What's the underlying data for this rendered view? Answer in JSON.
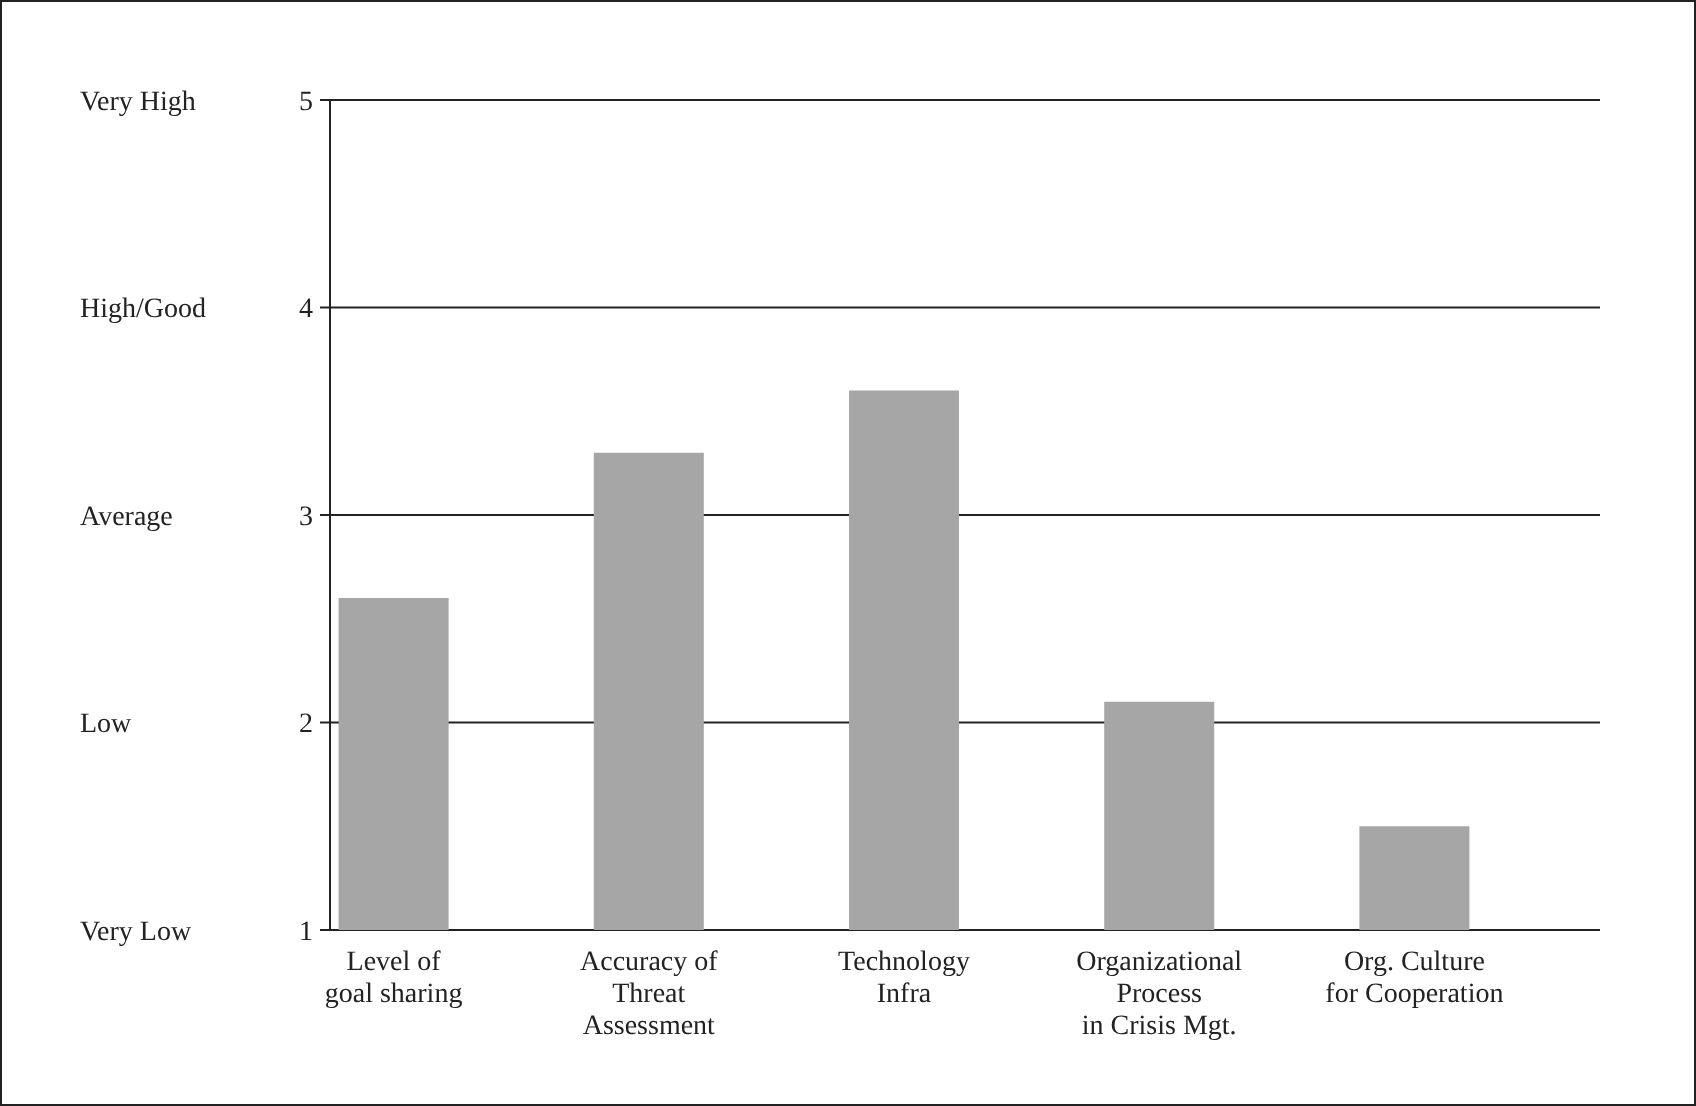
{
  "chart_data": {
    "type": "bar",
    "categories": [
      "Level of\ngoal sharing",
      "Accuracy of\nThreat\nAssessment",
      "Technology\nInfra",
      "Organizational\nProcess\nin Crisis Mgt.",
      "Org. Culture\nfor Cooperation"
    ],
    "values": [
      2.6,
      3.3,
      3.6,
      2.1,
      1.5
    ],
    "color": "#a6a6a6",
    "ylim": [
      1,
      5
    ],
    "yticks": [
      1,
      2,
      3,
      4,
      5
    ],
    "annotations": [
      "Very Low",
      "Low",
      "Average",
      "High/Good",
      "Very High"
    ],
    "grid": "y"
  }
}
